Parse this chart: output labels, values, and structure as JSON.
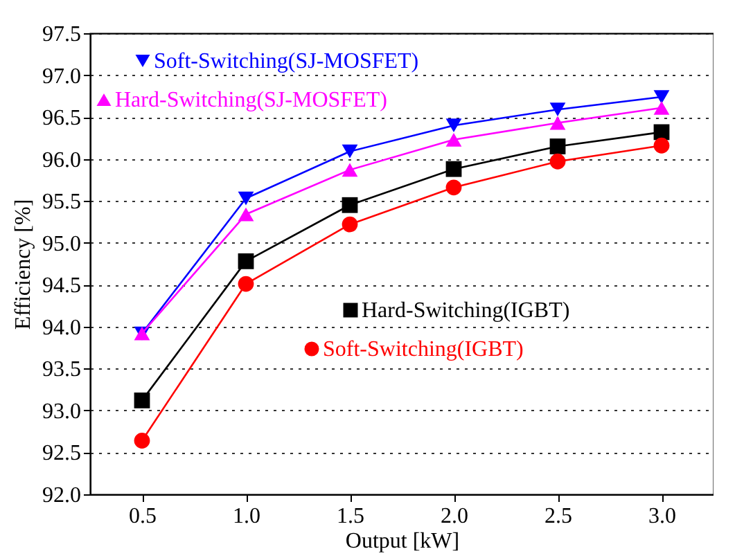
{
  "chart_data": {
    "type": "line",
    "xlabel": "Output [kW]",
    "ylabel": "Efficiency [%]",
    "x": [
      0.5,
      1.0,
      1.5,
      2.0,
      2.5,
      3.0
    ],
    "series": [
      {
        "name": "Soft-Switching(SJ-MOSFET)",
        "color": "#0000ff",
        "marker": "triangle-down",
        "values": [
          93.92,
          95.53,
          96.09,
          96.4,
          96.59,
          96.74
        ]
      },
      {
        "name": "Hard-Switching(SJ-MOSFET)",
        "color": "#ff00ff",
        "marker": "triangle",
        "values": [
          93.92,
          95.34,
          95.87,
          96.23,
          96.43,
          96.61
        ]
      },
      {
        "name": "Hard-Switching(IGBT)",
        "color": "#000000",
        "marker": "square",
        "values": [
          93.12,
          94.78,
          95.45,
          95.88,
          96.15,
          96.32
        ]
      },
      {
        "name": "Soft-Switching(IGBT)",
        "color": "#ff0000",
        "marker": "circle",
        "values": [
          92.64,
          94.51,
          95.22,
          95.66,
          95.97,
          96.16
        ]
      }
    ],
    "xlim": [
      0.25,
      3.25
    ],
    "xticks": [
      {
        "value": 0.5,
        "label": "0.5"
      },
      {
        "value": 1.0,
        "label": "1.0"
      },
      {
        "value": 1.5,
        "label": "1.5"
      },
      {
        "value": 2.0,
        "label": "2.0"
      },
      {
        "value": 2.5,
        "label": "2.5"
      },
      {
        "value": 3.0,
        "label": "3.0"
      }
    ],
    "ylim": [
      92.0,
      97.5
    ],
    "yticks": [
      {
        "value": 92.0,
        "label": "92.0"
      },
      {
        "value": 92.5,
        "label": "92.5"
      },
      {
        "value": 93.0,
        "label": "93.0"
      },
      {
        "value": 93.5,
        "label": "93.5"
      },
      {
        "value": 94.0,
        "label": "94.0"
      },
      {
        "value": 94.5,
        "label": "94.5"
      },
      {
        "value": 95.0,
        "label": "95.0"
      },
      {
        "value": 95.5,
        "label": "95.5"
      },
      {
        "value": 96.0,
        "label": "96.0"
      },
      {
        "value": 96.5,
        "label": "96.5"
      },
      {
        "value": 97.0,
        "label": "97.0"
      },
      {
        "value": 97.5,
        "label": "97.5"
      }
    ],
    "grid": "y",
    "legend": "top left",
    "line_style": "solid"
  }
}
